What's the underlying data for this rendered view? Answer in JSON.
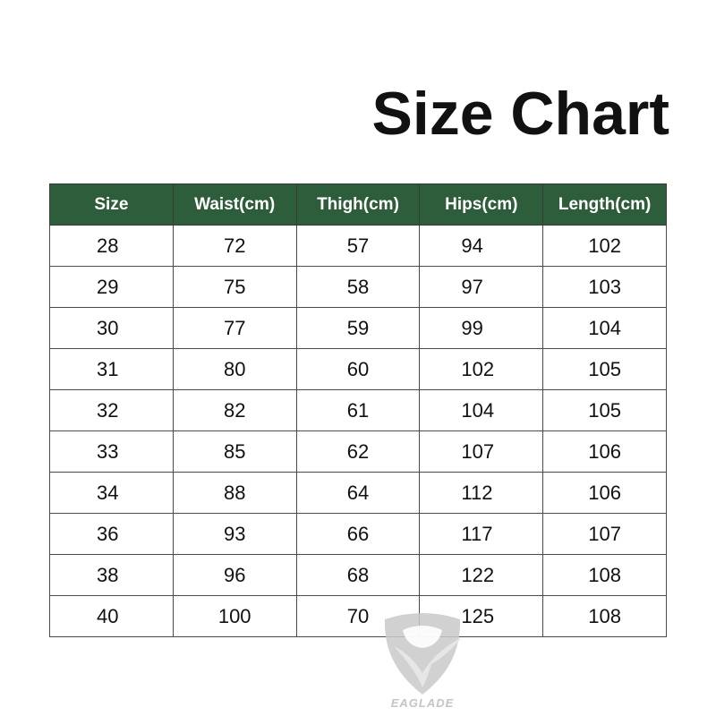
{
  "title": "Size Chart",
  "colors": {
    "header_bg": "#2e5d3b",
    "header_text": "#ffffff",
    "logo": "#c4c4c4"
  },
  "table": {
    "headers": [
      "Size",
      "Waist(cm)",
      "Thigh(cm)",
      "Hips(cm)",
      "Length(cm)"
    ],
    "rows": [
      [
        "28",
        "72",
        "57",
        "94",
        "102"
      ],
      [
        "29",
        "75",
        "58",
        "97",
        "103"
      ],
      [
        "30",
        "77",
        "59",
        "99",
        "104"
      ],
      [
        "31",
        "80",
        "60",
        "102",
        "105"
      ],
      [
        "32",
        "82",
        "61",
        "104",
        "105"
      ],
      [
        "33",
        "85",
        "62",
        "107",
        "106"
      ],
      [
        "34",
        "88",
        "64",
        "112",
        "106"
      ],
      [
        "36",
        "93",
        "66",
        "117",
        "107"
      ],
      [
        "38",
        "96",
        "68",
        "122",
        "108"
      ],
      [
        "40",
        "100",
        "70",
        "125",
        "108"
      ]
    ]
  },
  "logo": {
    "text": "EAGLADE",
    "icon": "eagle-shield-icon"
  }
}
